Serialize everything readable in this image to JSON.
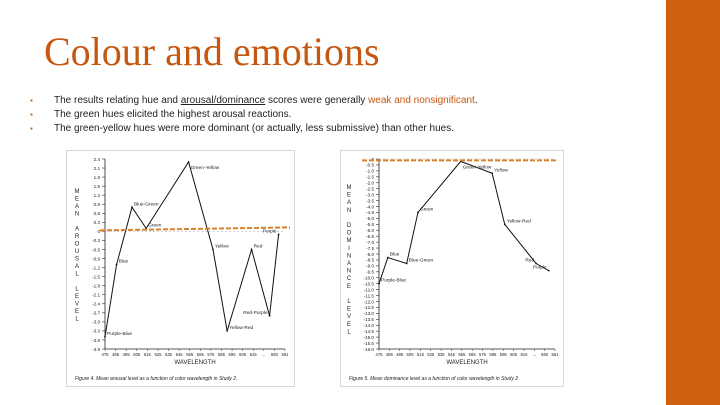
{
  "slide": {
    "title": "Colour and emotions",
    "bullets": [
      {
        "pre": "The results relating hue and ",
        "u": "arousal/dominance",
        "mid": " scores were generally ",
        "hl": "weak and nonsignificant",
        "post": "."
      },
      {
        "text": "The green hues elicited the highest arousal reactions."
      },
      {
        "text": "The green-yellow hues were more dominant (or actually, less submissive) than other hues."
      }
    ],
    "colors": {
      "accent": "#d0620f",
      "title": "#c6570f",
      "highlight_line": "#d9822b"
    }
  },
  "figure1": {
    "ylabel": "MEAN AROUSAL LEVEL",
    "xlabel": "WAVELENGTH",
    "caption": "Figure 4.  Mean arousal level as a function of color wavelength in Study 2.",
    "yticks": [
      "2.4",
      "2.1",
      "1.8",
      "1.5",
      "1.2",
      "0.9",
      "0.6",
      "0.3",
      "0",
      "-0.3",
      "-0.6",
      "-0.9",
      "-1.2",
      "-1.5",
      "-1.8",
      "-2.1",
      "-2.4",
      "-2.7",
      "-3.0",
      "-3.3",
      "-3.6",
      "-3.9"
    ],
    "xticks": [
      "475",
      "485",
      "495",
      "505",
      "515",
      "525",
      "535",
      "545",
      "555",
      "565",
      "575",
      "585",
      "595",
      "605",
      "615",
      "...",
      "560",
      "561"
    ],
    "chart_data": {
      "type": "line",
      "ylim": [
        -3.9,
        2.4
      ],
      "reference_line": 0,
      "points": [
        {
          "label": "Purple-Blue",
          "x": 475,
          "y": -3.5
        },
        {
          "label": "Blue",
          "x": 484,
          "y": -1.1
        },
        {
          "label": "Blue-Green",
          "x": 496,
          "y": 0.8
        },
        {
          "label": "Green",
          "x": 507,
          "y": 0.1
        },
        {
          "label": "Green-Yellow",
          "x": 540,
          "y": 2.3
        },
        {
          "label": "Yellow",
          "x": 559,
          "y": -0.6
        },
        {
          "label": "Yellow-Red",
          "x": 570,
          "y": -3.3
        },
        {
          "label": "Red",
          "x": 589,
          "y": -0.6
        },
        {
          "label": "Red-Purple",
          "x": 603,
          "y": -2.8
        },
        {
          "label": "Purple",
          "x": 610,
          "y": -0.1
        }
      ]
    }
  },
  "figure2": {
    "ylabel": "MEAN DOMINANCE LEVEL",
    "xlabel": "WAVELENGTH",
    "caption": "Figure 5.  Mean dominance level as a function of color wavelength in Study 2.",
    "yticks": [
      "0",
      "-0.5",
      "-1.0",
      "-1.5",
      "-2.0",
      "-2.5",
      "-3.0",
      "-3.5",
      "-4.0",
      "-4.5",
      "-5.0",
      "-5.5",
      "-6.0",
      "-6.5",
      "-7.0",
      "-7.5",
      "-8.0",
      "-8.5",
      "-9.0",
      "-9.5",
      "-10.0",
      "-10.5",
      "-11.0",
      "-11.5",
      "-12.0",
      "-12.5",
      "-13.0",
      "-13.5",
      "-14.0",
      "-14.5",
      "-15.0",
      "-15.5",
      "-16.0"
    ],
    "xticks": [
      "475",
      "485",
      "495",
      "505",
      "515",
      "525",
      "535",
      "545",
      "555",
      "565",
      "575",
      "585",
      "595",
      "605",
      "615",
      "...",
      "560",
      "561"
    ],
    "chart_data": {
      "type": "line",
      "ylim": [
        -16.0,
        0
      ],
      "reference_line": 0,
      "points": [
        {
          "label": "Purple-Blue",
          "x": 475,
          "y": -10.5
        },
        {
          "label": "Blue",
          "x": 482,
          "y": -8.3
        },
        {
          "label": "Blue-Green",
          "x": 497,
          "y": -8.8
        },
        {
          "label": "Green",
          "x": 506,
          "y": -4.5
        },
        {
          "label": "Green-Yellow",
          "x": 540,
          "y": -0.2
        },
        {
          "label": "Yellow",
          "x": 565,
          "y": -1.2
        },
        {
          "label": "Yellow-Red",
          "x": 575,
          "y": -5.5
        },
        {
          "label": "Red",
          "x": 600,
          "y": -8.8
        },
        {
          "label": "Purple",
          "x": 610,
          "y": -9.4
        }
      ]
    }
  }
}
